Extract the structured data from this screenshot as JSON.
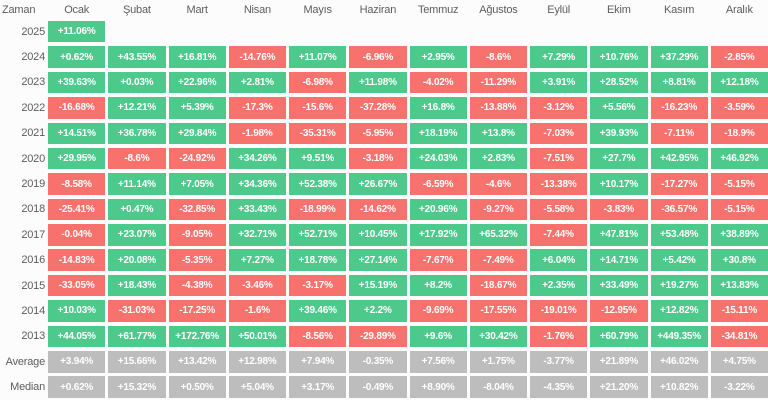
{
  "header": {
    "time_column_label": "Zaman"
  },
  "colors": {
    "positive": "#4ec98c",
    "negative": "#f7716d",
    "summary": "#bdbdbd",
    "label_text": "#5d5d5d",
    "cell_text": "#ffffff",
    "background": "#fcfcfc"
  },
  "chart_data": {
    "type": "heatmap",
    "x_categories": [
      "Ocak",
      "Şubat",
      "Mart",
      "Nisan",
      "Mayıs",
      "Haziran",
      "Temmuz",
      "Ağustos",
      "Eylül",
      "Ekim",
      "Kasım",
      "Aralık"
    ],
    "y_categories": [
      "2025",
      "2024",
      "2023",
      "2022",
      "2021",
      "2020",
      "2019",
      "2018",
      "2017",
      "2016",
      "2015",
      "2014",
      "2013",
      "Average",
      "Median"
    ],
    "value_format": "signed percent, green positive, red negative, gray summary rows",
    "rows": [
      {
        "label": "2025",
        "summary": false,
        "values": [
          "+11.06%",
          null,
          null,
          null,
          null,
          null,
          null,
          null,
          null,
          null,
          null,
          null
        ]
      },
      {
        "label": "2024",
        "summary": false,
        "values": [
          "+0.62%",
          "+43.55%",
          "+16.81%",
          "-14.76%",
          "+11.07%",
          "-6.96%",
          "+2.95%",
          "-8.6%",
          "+7.29%",
          "+10.76%",
          "+37.29%",
          "-2.85%"
        ]
      },
      {
        "label": "2023",
        "summary": false,
        "values": [
          "+39.63%",
          "+0.03%",
          "+22.96%",
          "+2.81%",
          "-6.98%",
          "+11.98%",
          "-4.02%",
          "-11.29%",
          "+3.91%",
          "+28.52%",
          "+8.81%",
          "+12.18%"
        ]
      },
      {
        "label": "2022",
        "summary": false,
        "values": [
          "-16.68%",
          "+12.21%",
          "+5.39%",
          "-17.3%",
          "-15.6%",
          "-37.28%",
          "+16.8%",
          "-13.88%",
          "-3.12%",
          "+5.56%",
          "-16.23%",
          "-3.59%"
        ]
      },
      {
        "label": "2021",
        "summary": false,
        "values": [
          "+14.51%",
          "+36.78%",
          "+29.84%",
          "-1.98%",
          "-35.31%",
          "-5.95%",
          "+18.19%",
          "+13.8%",
          "-7.03%",
          "+39.93%",
          "-7.11%",
          "-18.9%"
        ]
      },
      {
        "label": "2020",
        "summary": false,
        "values": [
          "+29.95%",
          "-8.6%",
          "-24.92%",
          "+34.26%",
          "+9.51%",
          "-3.18%",
          "+24.03%",
          "+2.83%",
          "-7.51%",
          "+27.7%",
          "+42.95%",
          "+46.92%"
        ]
      },
      {
        "label": "2019",
        "summary": false,
        "values": [
          "-8.58%",
          "+11.14%",
          "+7.05%",
          "+34.36%",
          "+52.38%",
          "+26.67%",
          "-6.59%",
          "-4.6%",
          "-13.38%",
          "+10.17%",
          "-17.27%",
          "-5.15%"
        ]
      },
      {
        "label": "2018",
        "summary": false,
        "values": [
          "-25.41%",
          "+0.47%",
          "-32.85%",
          "+33.43%",
          "-18.99%",
          "-14.62%",
          "+20.96%",
          "-9.27%",
          "-5.58%",
          "-3.83%",
          "-36.57%",
          "-5.15%"
        ]
      },
      {
        "label": "2017",
        "summary": false,
        "values": [
          "-0.04%",
          "+23.07%",
          "-9.05%",
          "+32.71%",
          "+52.71%",
          "+10.45%",
          "+17.92%",
          "+65.32%",
          "-7.44%",
          "+47.81%",
          "+53.48%",
          "+38.89%"
        ]
      },
      {
        "label": "2016",
        "summary": false,
        "values": [
          "-14.83%",
          "+20.08%",
          "-5.35%",
          "+7.27%",
          "+18.78%",
          "+27.14%",
          "-7.67%",
          "-7.49%",
          "+6.04%",
          "+14.71%",
          "+5.42%",
          "+30.8%"
        ]
      },
      {
        "label": "2015",
        "summary": false,
        "values": [
          "-33.05%",
          "+18.43%",
          "-4.38%",
          "-3.46%",
          "-3.17%",
          "+15.19%",
          "+8.2%",
          "-18.67%",
          "+2.35%",
          "+33.49%",
          "+19.27%",
          "+13.83%"
        ]
      },
      {
        "label": "2014",
        "summary": false,
        "values": [
          "+10.03%",
          "-31.03%",
          "-17.25%",
          "-1.6%",
          "+39.46%",
          "+2.2%",
          "-9.69%",
          "-17.55%",
          "-19.01%",
          "-12.95%",
          "+12.82%",
          "-15.11%"
        ]
      },
      {
        "label": "2013",
        "summary": false,
        "values": [
          "+44.05%",
          "+61.77%",
          "+172.76%",
          "+50.01%",
          "-8.56%",
          "-29.89%",
          "+9.6%",
          "+30.42%",
          "-1.76%",
          "+60.79%",
          "+449.35%",
          "-34.81%"
        ]
      },
      {
        "label": "Average",
        "summary": true,
        "values": [
          "+3.94%",
          "+15.66%",
          "+13.42%",
          "+12.98%",
          "+7.94%",
          "-0.35%",
          "+7.56%",
          "+1.75%",
          "-3.77%",
          "+21.89%",
          "+46.02%",
          "+4.75%"
        ]
      },
      {
        "label": "Median",
        "summary": true,
        "values": [
          "+0.62%",
          "+15.32%",
          "+0.50%",
          "+5.04%",
          "+3.17%",
          "-0.49%",
          "+8.90%",
          "-8.04%",
          "-4.35%",
          "+21.20%",
          "+10.82%",
          "-3.22%"
        ]
      }
    ]
  }
}
